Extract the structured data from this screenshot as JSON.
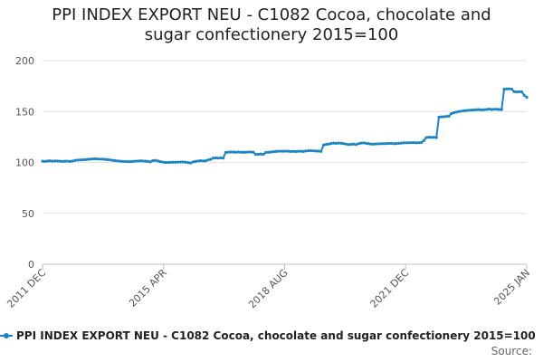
{
  "chart_data": {
    "type": "line",
    "title_line1": "PPI INDEX EXPORT NEU - C1082 Cocoa, chocolate and",
    "title_line2": "sugar confectionery 2015=100",
    "xlabel": "",
    "ylabel": "",
    "ylim": [
      0,
      200
    ],
    "yticks": [
      0,
      50,
      100,
      150,
      200
    ],
    "x_tick_labels": [
      "2011 DEC",
      "2015 APR",
      "2018 AUG",
      "2021 DEC",
      "2025 JAN"
    ],
    "x_start": "2011 DEC",
    "x_end": "2025 JAN",
    "grid": true,
    "legend_position": "bottom",
    "series": [
      {
        "name": "PPI INDEX EXPORT NEU - C1082 Cocoa, chocolate and sugar confectionery 2015=100",
        "color": "#1a84c4",
        "values": [
          101.2,
          101.0,
          101.5,
          101.6,
          101.3,
          101.5,
          101.4,
          101.2,
          101.0,
          101.2,
          101.3,
          101.0,
          101.4,
          102.0,
          102.3,
          102.5,
          102.6,
          102.8,
          103.0,
          103.2,
          103.5,
          103.6,
          103.4,
          103.3,
          103.2,
          103.0,
          102.8,
          102.5,
          102.0,
          101.8,
          101.5,
          101.3,
          101.0,
          100.9,
          100.8,
          100.8,
          101.0,
          101.3,
          101.4,
          101.6,
          101.5,
          101.2,
          101.0,
          100.6,
          101.8,
          102.0,
          101.5,
          100.8,
          100.3,
          100.0,
          100.0,
          100.1,
          100.2,
          100.2,
          100.3,
          100.4,
          100.5,
          100.2,
          99.9,
          99.5,
          100.5,
          101.0,
          101.4,
          101.8,
          101.5,
          101.6,
          102.5,
          103.0,
          104.2,
          104.5,
          104.3,
          104.5,
          104.2,
          109.8,
          110.1,
          110.3,
          110.2,
          110.0,
          110.3,
          110.0,
          110.0,
          110.0,
          110.2,
          110.3,
          110.0,
          108.0,
          108.0,
          108.2,
          108.0,
          109.8,
          110.0,
          110.2,
          110.5,
          110.8,
          111.0,
          111.0,
          111.0,
          111.1,
          111.0,
          110.8,
          110.9,
          110.7,
          111.0,
          111.0,
          110.8,
          111.3,
          111.5,
          111.6,
          111.4,
          111.2,
          111.1,
          110.9,
          117.0,
          117.8,
          118.0,
          118.6,
          119.0,
          118.8,
          119.0,
          118.9,
          118.5,
          118.0,
          117.6,
          117.8,
          118.0,
          117.6,
          118.5,
          119.0,
          119.2,
          118.8,
          118.5,
          118.0,
          118.0,
          118.2,
          118.3,
          118.5,
          118.4,
          118.6,
          118.7,
          118.8,
          118.5,
          118.6,
          118.8,
          119.0,
          119.2,
          119.3,
          119.4,
          119.4,
          119.5,
          119.3,
          119.4,
          119.6,
          121.5,
          124.5,
          124.8,
          124.6,
          124.7,
          124.5,
          144.5,
          144.8,
          144.9,
          145.3,
          145.5,
          148.0,
          148.8,
          149.5,
          150.0,
          150.4,
          150.8,
          151.0,
          151.3,
          151.5,
          151.6,
          151.8,
          151.9,
          151.7,
          151.8,
          152.0,
          152.4,
          152.0,
          152.2,
          152.3,
          152.0,
          151.9,
          172.0,
          172.2,
          172.3,
          172.1,
          169.5,
          169.3,
          169.5,
          169.4,
          166.0,
          164.0
        ]
      }
    ]
  },
  "source_label": "Source:"
}
